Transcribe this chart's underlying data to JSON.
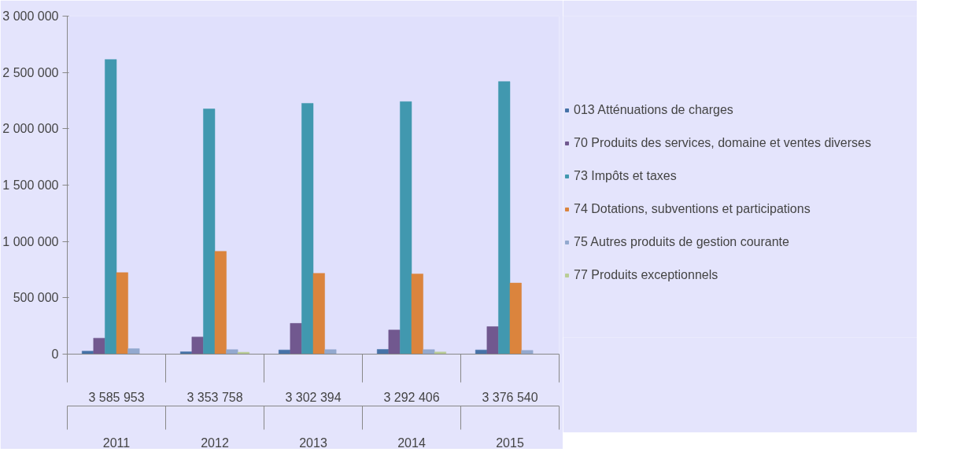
{
  "chart_data": {
    "type": "bar",
    "categories": [
      "2011",
      "2012",
      "2013",
      "2014",
      "2015"
    ],
    "annotations": [
      "3 585 953",
      "3 353 758",
      "3 302 394",
      "3 292 406",
      "3 376 540"
    ],
    "series": [
      {
        "name": "013 Atténuations de charges",
        "color": "#4572a7",
        "values": [
          27000,
          21000,
          37000,
          42000,
          37000
        ]
      },
      {
        "name": "70 Produits des services, domaine et ventes diverses",
        "color": "#71588f",
        "values": [
          142000,
          152000,
          273000,
          214000,
          244000
        ]
      },
      {
        "name": "73 Impôts et taxes",
        "color": "#4198af",
        "values": [
          2615000,
          2176000,
          2226000,
          2241000,
          2419000
        ]
      },
      {
        "name": "74 Dotations, subventions et participations",
        "color": "#db843d",
        "values": [
          723000,
          912000,
          717000,
          712000,
          631000
        ]
      },
      {
        "name": "75 Autres produits de gestion courante",
        "color": "#93a9cf",
        "values": [
          48000,
          40000,
          40000,
          40000,
          33000
        ]
      },
      {
        "name": "77 Produits exceptionnels",
        "color": "#b9cd96",
        "values": [
          0,
          17000,
          0,
          19000,
          0
        ]
      }
    ],
    "ylim": [
      0,
      3000000
    ],
    "yticks": [
      {
        "value": 0,
        "label": "0"
      },
      {
        "value": 500000,
        "label": "500 000"
      },
      {
        "value": 1000000,
        "label": "1 000 000"
      },
      {
        "value": 1500000,
        "label": "1 500 000"
      },
      {
        "value": 2000000,
        "label": "2 000 000"
      },
      {
        "value": 2500000,
        "label": "2 500 000"
      },
      {
        "value": 3000000,
        "label": "3 000 000"
      }
    ],
    "grid": false,
    "legend": "right"
  }
}
